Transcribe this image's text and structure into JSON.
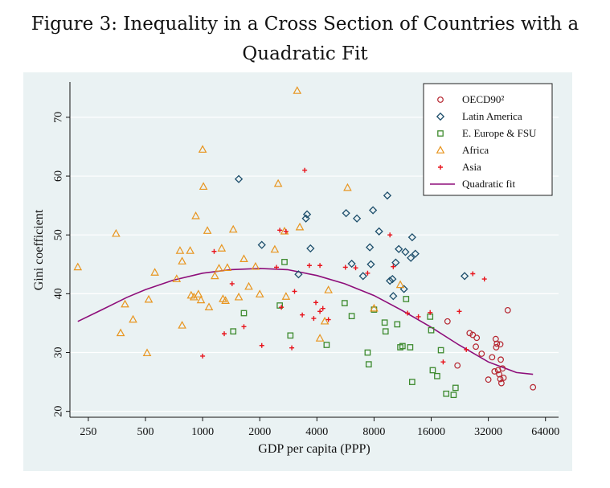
{
  "figure": {
    "title_line1": "Figure 3: Inequality in a Cross Section of Countries with a",
    "title_line2": "Quadratic Fit"
  },
  "chart_data": {
    "type": "scatter",
    "title": "Figure 3: Inequality in a Cross Section of Countries with a Quadratic Fit",
    "xlabel": "GDP per capita (PPP)",
    "ylabel": "Gini coefficient",
    "x_scale": "log2",
    "xlim": [
      200,
      75000
    ],
    "ylim": [
      19,
      76
    ],
    "xticks": [
      250,
      500,
      1000,
      2000,
      4000,
      8000,
      16000,
      32000,
      64000
    ],
    "xtick_labels": [
      "250",
      "500",
      "1000",
      "2000",
      "4000",
      "8000",
      "16000",
      "32000",
      "64000"
    ],
    "yticks": [
      20,
      30,
      40,
      50,
      60,
      70
    ],
    "ytick_labels": [
      "20",
      "30",
      "40",
      "50",
      "60",
      "70"
    ],
    "grid": "horizontal",
    "legend_position": "top-right",
    "colors": {
      "plot_background": "#eaf2f3",
      "outer_background": "#eaf2f3",
      "grid": "#ffffff",
      "oecd": "#b5242e",
      "latam": "#1d4e6b",
      "eeurope": "#3d8a2e",
      "africa": "#e8951f",
      "asia": "#e8141c",
      "fit": "#8e0e7a"
    },
    "series": [
      {
        "name": "OECD90²",
        "marker": "circle",
        "color": "#b5242e",
        "points": [
          [
            19500,
            35.3
          ],
          [
            22000,
            27.8
          ],
          [
            25500,
            33.3
          ],
          [
            26500,
            33
          ],
          [
            27500,
            31
          ],
          [
            27800,
            32.5
          ],
          [
            29500,
            29.8
          ],
          [
            32000,
            25.4
          ],
          [
            33500,
            29.2
          ],
          [
            35000,
            32.3
          ],
          [
            35500,
            31.5
          ],
          [
            36000,
            27
          ],
          [
            36500,
            26.3
          ],
          [
            37000,
            25.5
          ],
          [
            37500,
            24.8
          ],
          [
            38000,
            27.3
          ],
          [
            38500,
            25.7
          ],
          [
            34500,
            26.8
          ],
          [
            37000,
            31.4
          ],
          [
            40500,
            37.2
          ],
          [
            55000,
            24.1
          ],
          [
            37200,
            28.8
          ],
          [
            35200,
            30.9
          ]
        ]
      },
      {
        "name": "Latin America",
        "marker": "diamond",
        "color": "#1d4e6b",
        "points": [
          [
            1550,
            59.5
          ],
          [
            2050,
            48.3
          ],
          [
            3200,
            43.3
          ],
          [
            3500,
            52.8
          ],
          [
            3550,
            53.5
          ],
          [
            3700,
            47.7
          ],
          [
            5700,
            53.7
          ],
          [
            6100,
            45.1
          ],
          [
            6500,
            52.8
          ],
          [
            7000,
            43
          ],
          [
            7600,
            47.9
          ],
          [
            7700,
            45
          ],
          [
            7900,
            54.2
          ],
          [
            8500,
            50.6
          ],
          [
            9400,
            56.7
          ],
          [
            9700,
            42.2
          ],
          [
            10000,
            42.5
          ],
          [
            10100,
            39.6
          ],
          [
            10400,
            45.3
          ],
          [
            10800,
            47.6
          ],
          [
            11500,
            40.8
          ],
          [
            11700,
            47.1
          ],
          [
            12500,
            46.1
          ],
          [
            12700,
            49.6
          ],
          [
            13200,
            46.8
          ],
          [
            24000,
            43
          ]
        ]
      },
      {
        "name": "E. Europe & FSU",
        "marker": "square",
        "color": "#3d8a2e",
        "points": [
          [
            1450,
            33.6
          ],
          [
            1650,
            36.7
          ],
          [
            2550,
            38
          ],
          [
            2700,
            45.4
          ],
          [
            2900,
            32.9
          ],
          [
            4500,
            31.3
          ],
          [
            5600,
            38.4
          ],
          [
            6100,
            36.2
          ],
          [
            7400,
            30
          ],
          [
            7500,
            28
          ],
          [
            8000,
            37.3
          ],
          [
            9100,
            35.1
          ],
          [
            9200,
            33.6
          ],
          [
            10600,
            34.8
          ],
          [
            11000,
            30.9
          ],
          [
            11300,
            31.1
          ],
          [
            11800,
            39.1
          ],
          [
            12400,
            30.9
          ],
          [
            12700,
            25
          ],
          [
            15800,
            36.1
          ],
          [
            16000,
            33.8
          ],
          [
            16300,
            27
          ],
          [
            17200,
            26
          ],
          [
            18000,
            30.4
          ],
          [
            19200,
            23
          ],
          [
            21000,
            22.8
          ],
          [
            21500,
            24
          ]
        ]
      },
      {
        "name": "Africa",
        "marker": "triangle",
        "color": "#e8951f",
        "points": [
          [
            220,
            44.5
          ],
          [
            350,
            50.2
          ],
          [
            370,
            33.3
          ],
          [
            390,
            38.2
          ],
          [
            430,
            35.6
          ],
          [
            510,
            29.9
          ],
          [
            520,
            39
          ],
          [
            560,
            43.6
          ],
          [
            730,
            42.5
          ],
          [
            760,
            47.3
          ],
          [
            780,
            34.6
          ],
          [
            780,
            45.5
          ],
          [
            860,
            47.3
          ],
          [
            870,
            39.7
          ],
          [
            900,
            39.4
          ],
          [
            920,
            53.2
          ],
          [
            950,
            39.9
          ],
          [
            980,
            38.9
          ],
          [
            1000,
            64.5
          ],
          [
            1010,
            58.2
          ],
          [
            1060,
            50.7
          ],
          [
            1080,
            37.7
          ],
          [
            1160,
            43
          ],
          [
            1220,
            44.3
          ],
          [
            1260,
            47.7
          ],
          [
            1280,
            39.1
          ],
          [
            1320,
            38.8
          ],
          [
            1350,
            44.4
          ],
          [
            1450,
            50.9
          ],
          [
            1550,
            39.4
          ],
          [
            1650,
            45.9
          ],
          [
            1750,
            41.2
          ],
          [
            1900,
            44.6
          ],
          [
            2000,
            39.9
          ],
          [
            2400,
            47.5
          ],
          [
            2500,
            58.7
          ],
          [
            2700,
            50.6
          ],
          [
            2750,
            39.5
          ],
          [
            3150,
            74.5
          ],
          [
            3250,
            51.3
          ],
          [
            4150,
            32.4
          ],
          [
            4400,
            35.3
          ],
          [
            4600,
            40.6
          ],
          [
            5800,
            58
          ],
          [
            8000,
            37.5
          ],
          [
            11000,
            41.5
          ]
        ]
      },
      {
        "name": "Asia",
        "marker": "plus",
        "color": "#e8141c",
        "points": [
          [
            1000,
            29.4
          ],
          [
            1150,
            47.2
          ],
          [
            1300,
            33.2
          ],
          [
            1430,
            41.7
          ],
          [
            1650,
            34.4
          ],
          [
            2050,
            31.2
          ],
          [
            2450,
            44.5
          ],
          [
            2550,
            50.8
          ],
          [
            2600,
            37.7
          ],
          [
            2750,
            50.6
          ],
          [
            2950,
            30.8
          ],
          [
            3050,
            40.4
          ],
          [
            3350,
            36.4
          ],
          [
            3450,
            61
          ],
          [
            3650,
            44.8
          ],
          [
            3850,
            35.8
          ],
          [
            3950,
            38.5
          ],
          [
            4150,
            44.8
          ],
          [
            4150,
            37
          ],
          [
            4300,
            37.5
          ],
          [
            4600,
            35.6
          ],
          [
            5650,
            44.5
          ],
          [
            6400,
            44.4
          ],
          [
            7400,
            43.5
          ],
          [
            9700,
            50
          ],
          [
            10100,
            44.6
          ],
          [
            12000,
            36.7
          ],
          [
            13700,
            36.1
          ],
          [
            15800,
            36.8
          ],
          [
            18500,
            28.4
          ],
          [
            22500,
            37
          ],
          [
            24500,
            30.5
          ],
          [
            26500,
            43.4
          ],
          [
            30500,
            42.5
          ]
        ]
      }
    ],
    "fit": {
      "name": "Quadratic fit",
      "type": "quadratic_in_log2_x",
      "points": [
        [
          220,
          35.3
        ],
        [
          300,
          37.4
        ],
        [
          400,
          39.4
        ],
        [
          500,
          40.7
        ],
        [
          700,
          42.3
        ],
        [
          1000,
          43.5
        ],
        [
          1400,
          44.1
        ],
        [
          2000,
          44.3
        ],
        [
          2800,
          44.1
        ],
        [
          4000,
          43.1
        ],
        [
          5600,
          41.7
        ],
        [
          8000,
          39.7
        ],
        [
          11200,
          37.2
        ],
        [
          16000,
          34.3
        ],
        [
          22400,
          31.3
        ],
        [
          32000,
          28.4
        ],
        [
          45000,
          26.6
        ],
        [
          55000,
          26.3
        ]
      ]
    }
  }
}
